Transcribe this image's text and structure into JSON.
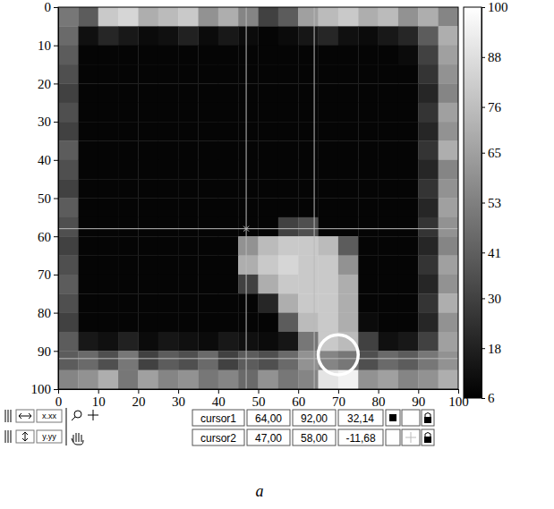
{
  "chart_data": {
    "type": "heatmap",
    "xlim": [
      0,
      100
    ],
    "ylim": [
      100,
      0
    ],
    "xticks": [
      0,
      10,
      20,
      30,
      40,
      50,
      60,
      70,
      80,
      90,
      100
    ],
    "yticks": [
      0,
      10,
      20,
      30,
      40,
      50,
      60,
      70,
      80,
      90,
      100
    ],
    "x_edges": [
      0,
      5,
      10,
      15,
      20,
      25,
      30,
      35,
      40,
      45,
      50,
      55,
      60,
      65,
      70,
      75,
      80,
      85,
      90,
      95,
      100
    ],
    "y_edges": [
      0,
      5,
      10,
      15,
      20,
      25,
      30,
      35,
      40,
      45,
      50,
      55,
      60,
      65,
      70,
      75,
      80,
      85,
      90,
      95,
      100
    ],
    "cells": [
      [
        50,
        40,
        80,
        85,
        70,
        75,
        80,
        60,
        70,
        55,
        30,
        40,
        65,
        75,
        80,
        70,
        75,
        60,
        70,
        55
      ],
      [
        45,
        12,
        20,
        15,
        10,
        12,
        18,
        10,
        15,
        10,
        8,
        10,
        14,
        20,
        12,
        10,
        15,
        20,
        40,
        70
      ],
      [
        40,
        8,
        8,
        8,
        8,
        8,
        8,
        8,
        8,
        8,
        8,
        8,
        8,
        8,
        8,
        8,
        8,
        10,
        30,
        65
      ],
      [
        35,
        8,
        8,
        8,
        8,
        8,
        8,
        8,
        8,
        8,
        8,
        8,
        8,
        8,
        8,
        8,
        8,
        8,
        25,
        60
      ],
      [
        30,
        8,
        8,
        8,
        8,
        8,
        8,
        8,
        8,
        8,
        8,
        8,
        8,
        8,
        8,
        8,
        8,
        8,
        20,
        55
      ],
      [
        35,
        8,
        8,
        8,
        8,
        8,
        8,
        8,
        8,
        8,
        8,
        8,
        8,
        8,
        8,
        8,
        8,
        8,
        25,
        65
      ],
      [
        30,
        8,
        8,
        8,
        8,
        8,
        8,
        8,
        8,
        8,
        8,
        8,
        8,
        8,
        8,
        8,
        8,
        8,
        20,
        60
      ],
      [
        40,
        8,
        8,
        8,
        8,
        8,
        8,
        8,
        8,
        8,
        8,
        8,
        8,
        8,
        8,
        8,
        8,
        8,
        25,
        70
      ],
      [
        35,
        8,
        8,
        8,
        8,
        8,
        8,
        8,
        8,
        8,
        8,
        8,
        8,
        8,
        8,
        8,
        8,
        8,
        20,
        55
      ],
      [
        30,
        8,
        8,
        8,
        8,
        8,
        8,
        8,
        8,
        8,
        8,
        8,
        8,
        8,
        8,
        8,
        8,
        8,
        25,
        60
      ],
      [
        40,
        8,
        8,
        8,
        8,
        8,
        8,
        8,
        8,
        8,
        8,
        8,
        8,
        8,
        8,
        8,
        8,
        8,
        20,
        65
      ],
      [
        35,
        8,
        8,
        8,
        8,
        8,
        8,
        8,
        8,
        8,
        8,
        30,
        35,
        8,
        8,
        8,
        8,
        8,
        25,
        60
      ],
      [
        30,
        8,
        8,
        8,
        8,
        8,
        8,
        8,
        8,
        60,
        75,
        80,
        80,
        75,
        40,
        8,
        8,
        8,
        20,
        55
      ],
      [
        35,
        8,
        8,
        8,
        8,
        8,
        8,
        8,
        8,
        70,
        80,
        85,
        80,
        80,
        60,
        8,
        8,
        8,
        25,
        65
      ],
      [
        40,
        8,
        8,
        8,
        8,
        8,
        8,
        8,
        8,
        30,
        70,
        80,
        80,
        80,
        70,
        8,
        8,
        8,
        20,
        60
      ],
      [
        35,
        8,
        8,
        8,
        8,
        8,
        8,
        8,
        8,
        8,
        20,
        70,
        80,
        80,
        70,
        8,
        8,
        8,
        25,
        70
      ],
      [
        30,
        8,
        8,
        8,
        8,
        8,
        8,
        8,
        8,
        8,
        8,
        40,
        75,
        80,
        70,
        10,
        8,
        8,
        20,
        60
      ],
      [
        40,
        15,
        12,
        18,
        10,
        14,
        12,
        10,
        15,
        12,
        10,
        14,
        50,
        80,
        75,
        30,
        12,
        15,
        30,
        65
      ],
      [
        40,
        45,
        35,
        50,
        30,
        40,
        35,
        45,
        30,
        40,
        35,
        45,
        60,
        55,
        50,
        35,
        45,
        40,
        50,
        60
      ],
      [
        55,
        60,
        70,
        50,
        65,
        55,
        60,
        50,
        55,
        45,
        60,
        50,
        55,
        90,
        95,
        60,
        65,
        55,
        60,
        70
      ]
    ],
    "colorbar": {
      "range": [
        6,
        100
      ],
      "ticks": [
        6,
        18,
        30,
        41,
        53,
        65,
        76,
        88,
        100
      ]
    },
    "cursors": [
      {
        "name": "cursor1",
        "x": {
          "value": 64,
          "label": "64,00"
        },
        "y": {
          "value": 92,
          "label": "92,00"
        },
        "reading": {
          "value": 32.14,
          "label": "32,14"
        }
      },
      {
        "name": "cursor2",
        "x": {
          "value": 47,
          "label": "47,00"
        },
        "y": {
          "value": 58,
          "label": "58,00"
        },
        "reading": {
          "value": -11.68,
          "label": "-11,68"
        }
      }
    ],
    "marker_circle": {
      "x": 70,
      "y": 91,
      "radius": 5
    },
    "toolbar_labels": [
      "x.xx",
      "y.yy"
    ],
    "caption": "a"
  }
}
